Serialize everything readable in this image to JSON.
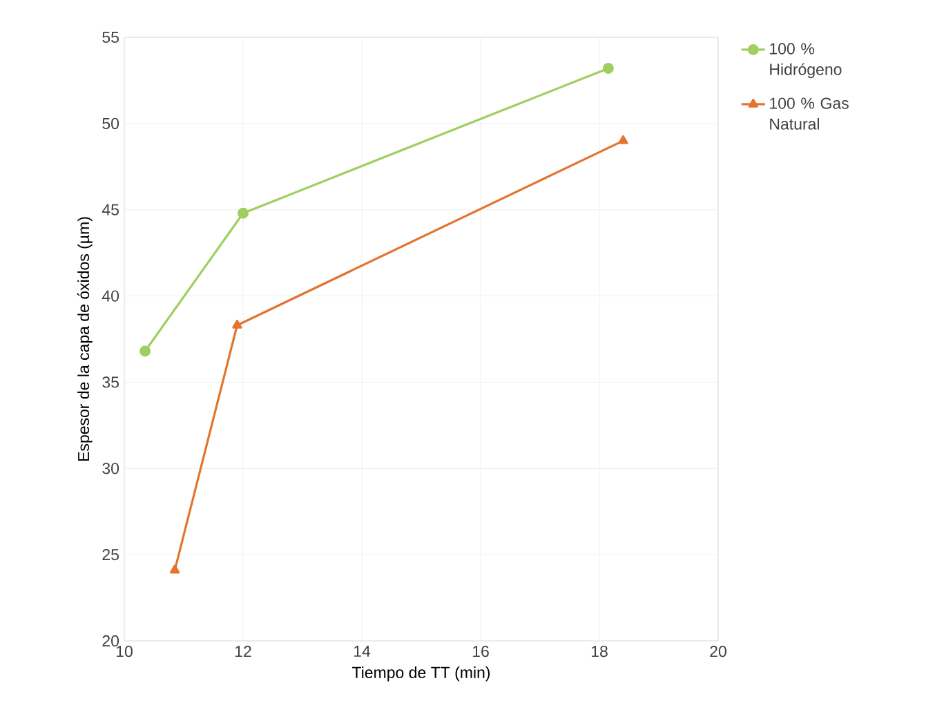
{
  "chart_data": {
    "type": "line",
    "xlabel": "Tiempo de TT (min)",
    "ylabel": "Espesor de la capa de óxidos (µm)",
    "xlim": [
      10,
      20
    ],
    "ylim": [
      20,
      55
    ],
    "xticks": [
      10,
      12,
      14,
      16,
      18,
      20
    ],
    "yticks": [
      20,
      25,
      30,
      35,
      40,
      45,
      50,
      55
    ],
    "grid": true,
    "legend": "top right",
    "line_style": "solid",
    "series": [
      {
        "name": "100 % Hidrógeno",
        "color": "#9fcf5f",
        "marker": "circle",
        "x": [
          10.35,
          12.0,
          18.15
        ],
        "values": [
          36.8,
          44.8,
          53.2
        ]
      },
      {
        "name": "100 % Gas Natural",
        "color": "#e2742f",
        "marker": "triangle",
        "x": [
          10.85,
          11.9,
          18.4
        ],
        "values": [
          24.1,
          38.3,
          49.0
        ]
      }
    ]
  }
}
